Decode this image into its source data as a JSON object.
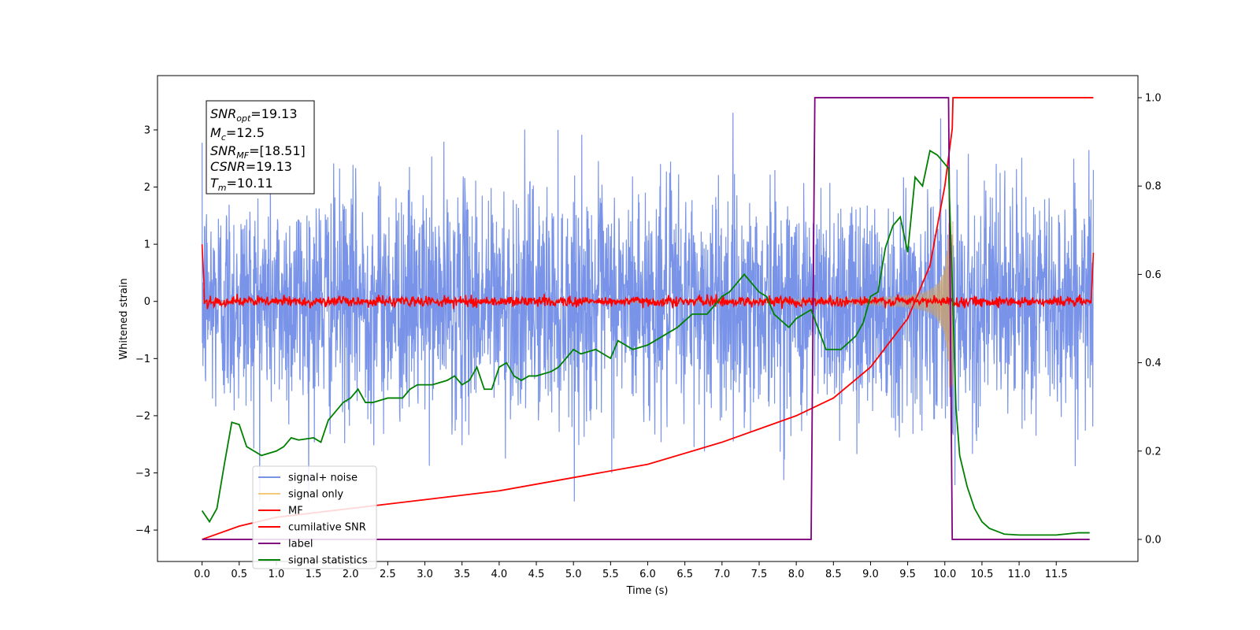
{
  "chart_data": {
    "type": "line",
    "xlabel": "Time (s)",
    "ylabel": "Whitened strain",
    "xlim": [
      -0.6,
      12.6
    ],
    "ylim": [
      -4.55,
      3.95
    ],
    "y2lim": [
      -0.05,
      1.05
    ],
    "x_ticks": [
      "0.0",
      "0.5",
      "1.0",
      "1.5",
      "2.0",
      "2.5",
      "3.0",
      "3.5",
      "4.0",
      "4.5",
      "5.0",
      "5.5",
      "6.0",
      "6.5",
      "7.0",
      "7.5",
      "8.0",
      "8.5",
      "9.0",
      "9.5",
      "10.0",
      "10.5",
      "11.0",
      "11.5"
    ],
    "y_ticks": [
      "3",
      "2",
      "1",
      "0",
      "−1",
      "−2",
      "−3",
      "−4"
    ],
    "y2_ticks": [
      "1.0",
      "0.8",
      "0.6",
      "0.4",
      "0.2",
      "0.0"
    ],
    "grid": false,
    "legend_position": "lower-left",
    "annotation": {
      "snr_opt": {
        "base": "SNR",
        "sub": "opt",
        "value": "=19.13"
      },
      "mc": {
        "base": "M",
        "sub": "c",
        "value": "=12.5"
      },
      "snr_mf": {
        "base": "SNR",
        "sub": "MF",
        "value": "=[18.51]"
      },
      "csnr": {
        "base": "CSNR",
        "sub": "",
        "value": "=19.13"
      },
      "tm": {
        "base": "T",
        "sub": "m",
        "value": "=10.11"
      }
    },
    "series": [
      {
        "name": "signal+ noise",
        "color": "#7893e8",
        "axis": "left",
        "description_values": {
          "amplitude_std": 1.0,
          "t_start": 0.0,
          "t_end": 12.0
        }
      },
      {
        "name": "signal only",
        "color": "#f5c97a",
        "axis": "left",
        "envelope": {
          "t_merger": 10.11,
          "peak_amplitude": 1.5
        }
      },
      {
        "name": "MF",
        "color": "#ff0000",
        "axis": "left",
        "baseline": 0.0,
        "start_value": 1.0,
        "end_value": 0.85
      },
      {
        "name": "cumilative SNR",
        "color": "#ff0000",
        "axis": "right",
        "x": [
          0.0,
          0.5,
          1.0,
          2.0,
          3.0,
          4.0,
          5.0,
          6.0,
          7.0,
          7.5,
          8.0,
          8.5,
          9.0,
          9.5,
          9.8,
          10.0,
          10.1,
          10.11,
          12.0
        ],
        "y": [
          0.0,
          0.03,
          0.05,
          0.07,
          0.09,
          0.11,
          0.14,
          0.17,
          0.22,
          0.25,
          0.28,
          0.32,
          0.39,
          0.5,
          0.62,
          0.8,
          0.93,
          1.0,
          1.0
        ]
      },
      {
        "name": "label",
        "color": "#7f007f",
        "axis": "right",
        "x": [
          0.0,
          8.2,
          8.25,
          10.05,
          10.1,
          11.95
        ],
        "y": [
          0.0,
          0.0,
          1.0,
          1.0,
          0.0,
          0.0
        ]
      },
      {
        "name": "signal statistics",
        "color": "#008000",
        "axis": "right",
        "x": [
          0.0,
          0.1,
          0.2,
          0.3,
          0.4,
          0.5,
          0.6,
          0.8,
          1.0,
          1.1,
          1.2,
          1.3,
          1.5,
          1.6,
          1.7,
          1.8,
          1.9,
          2.0,
          2.1,
          2.2,
          2.3,
          2.5,
          2.7,
          2.8,
          2.9,
          3.1,
          3.3,
          3.4,
          3.5,
          3.6,
          3.7,
          3.8,
          3.9,
          4.0,
          4.1,
          4.2,
          4.3,
          4.4,
          4.5,
          4.7,
          4.8,
          5.0,
          5.1,
          5.3,
          5.5,
          5.6,
          5.8,
          6.0,
          6.2,
          6.4,
          6.6,
          6.8,
          7.0,
          7.1,
          7.3,
          7.5,
          7.6,
          7.7,
          7.9,
          8.0,
          8.2,
          8.4,
          8.6,
          8.8,
          8.9,
          9.0,
          9.1,
          9.2,
          9.3,
          9.4,
          9.5,
          9.6,
          9.7,
          9.8,
          9.9,
          10.0,
          10.05,
          10.1,
          10.15,
          10.2,
          10.3,
          10.4,
          10.5,
          10.6,
          10.8,
          11.0,
          11.2,
          11.5,
          11.8,
          11.95
        ],
        "y": [
          0.065,
          0.04,
          0.07,
          0.17,
          0.265,
          0.26,
          0.21,
          0.19,
          0.2,
          0.21,
          0.23,
          0.225,
          0.23,
          0.22,
          0.27,
          0.29,
          0.31,
          0.32,
          0.34,
          0.31,
          0.31,
          0.32,
          0.32,
          0.34,
          0.35,
          0.35,
          0.36,
          0.37,
          0.35,
          0.36,
          0.39,
          0.34,
          0.34,
          0.39,
          0.4,
          0.37,
          0.36,
          0.37,
          0.37,
          0.38,
          0.39,
          0.43,
          0.42,
          0.43,
          0.41,
          0.45,
          0.43,
          0.44,
          0.46,
          0.48,
          0.51,
          0.51,
          0.55,
          0.56,
          0.6,
          0.56,
          0.55,
          0.51,
          0.48,
          0.5,
          0.52,
          0.43,
          0.43,
          0.46,
          0.49,
          0.55,
          0.56,
          0.66,
          0.71,
          0.73,
          0.65,
          0.82,
          0.8,
          0.88,
          0.87,
          0.85,
          0.84,
          0.58,
          0.3,
          0.19,
          0.12,
          0.07,
          0.04,
          0.025,
          0.012,
          0.01,
          0.01,
          0.01,
          0.015,
          0.015
        ]
      }
    ]
  }
}
